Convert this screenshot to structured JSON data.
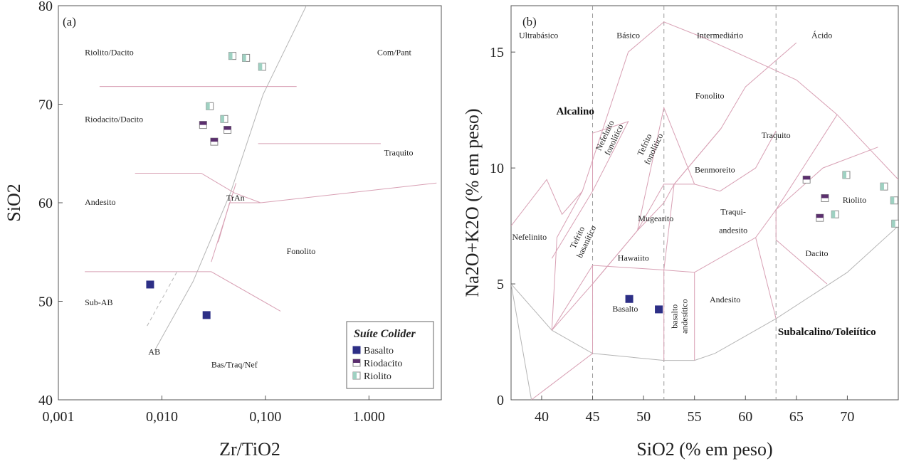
{
  "colors": {
    "basalto": "#2d2f86",
    "riodacito": "#5b2f6e",
    "riolito": "#9fd1c2",
    "pink_line": "#d8a0b4",
    "gray_line": "#b5b5b5"
  },
  "chart_data": [
    {
      "type": "scatter",
      "panel_label": "(a)",
      "xlabel": "Zr/TiO2",
      "ylabel": "SiO2",
      "x_scale": "log",
      "xlim": [
        0.001,
        5
      ],
      "ylim": [
        40,
        80
      ],
      "x_ticks": [
        {
          "value": 0.001,
          "label": "0,001"
        },
        {
          "value": 0.01,
          "label": "0,010"
        },
        {
          "value": 0.1,
          "label": "0,100"
        },
        {
          "value": 1,
          "label": "1.000"
        }
      ],
      "y_ticks": [
        {
          "value": 40,
          "label": "40"
        },
        {
          "value": 50,
          "label": "50"
        },
        {
          "value": 60,
          "label": "60"
        },
        {
          "value": 70,
          "label": "70"
        },
        {
          "value": 80,
          "label": "80"
        }
      ],
      "field_labels": [
        {
          "text": "Riolito/Dacito",
          "x": 0.0018,
          "y": 75.0
        },
        {
          "text": "Com/Pant",
          "x": 1.2,
          "y": 75.0
        },
        {
          "text": "Riodacito/Dacito",
          "x": 0.0018,
          "y": 68.2
        },
        {
          "text": "Traquito",
          "x": 1.4,
          "y": 64.8
        },
        {
          "text": "Andesito",
          "x": 0.0018,
          "y": 59.8
        },
        {
          "text": "TrAn",
          "x": 0.042,
          "y": 60.2
        },
        {
          "text": "Fonolito",
          "x": 0.16,
          "y": 54.8
        },
        {
          "text": "Sub-AB",
          "x": 0.0018,
          "y": 49.6
        },
        {
          "text": "AB",
          "x": 0.0074,
          "y": 44.6
        },
        {
          "text": "Bas/Traq/Nef",
          "x": 0.03,
          "y": 43.3
        }
      ],
      "legend": {
        "title": "Suíte Colider",
        "items": [
          "Basalto",
          "Riodacito",
          "Riolito"
        ]
      },
      "series": [
        {
          "name": "Basalto",
          "points": [
            [
              0.0077,
              51.7
            ],
            [
              0.027,
              48.6
            ]
          ]
        },
        {
          "name": "Riodacito",
          "points": [
            [
              0.025,
              67.9
            ],
            [
              0.043,
              67.4
            ],
            [
              0.032,
              66.2
            ]
          ]
        },
        {
          "name": "Riolito",
          "points": [
            [
              0.048,
              74.9
            ],
            [
              0.065,
              74.7
            ],
            [
              0.093,
              73.8
            ],
            [
              0.029,
              69.8
            ],
            [
              0.04,
              68.5
            ]
          ]
        }
      ],
      "boundaries": [
        [
          [
            0.0085,
            45.0
          ],
          [
            0.02,
            52.0
          ],
          [
            0.046,
            61.0
          ],
          [
            0.095,
            71.0
          ],
          [
            0.65,
            89.0
          ]
        ],
        [
          [
            0.0018,
            53.0
          ],
          [
            0.03,
            53.0
          ],
          [
            0.14,
            49.0
          ]
        ],
        [
          [
            0.0055,
            63.0
          ],
          [
            0.024,
            63.0
          ],
          [
            0.05,
            61.0
          ],
          [
            0.09,
            60.0
          ]
        ],
        [
          [
            0.09,
            60.0
          ],
          [
            4.5,
            62.0
          ]
        ],
        [
          [
            0.0025,
            71.8
          ],
          [
            0.2,
            71.8
          ]
        ],
        [
          [
            0.085,
            66.0
          ],
          [
            1.3,
            66.0
          ]
        ],
        [
          [
            0.035,
            56.0
          ],
          [
            0.045,
            60.0
          ],
          [
            0.09,
            60.0
          ]
        ],
        [
          [
            0.03,
            54.0
          ],
          [
            0.052,
            62.0
          ]
        ]
      ],
      "dashed_boundaries": [
        [
          [
            0.0072,
            47.5
          ],
          [
            0.014,
            53.0
          ]
        ]
      ]
    },
    {
      "type": "scatter",
      "panel_label": "(b)",
      "xlabel": "SiO2 (% em peso)",
      "ylabel": "Na2O+K2O (% em peso)",
      "xlim": [
        37,
        75
      ],
      "ylim": [
        0,
        17
      ],
      "x_ticks": [
        40,
        45,
        50,
        55,
        60,
        65,
        70
      ],
      "y_ticks": [
        0,
        5,
        10,
        15
      ],
      "dashed_x": [
        45,
        52,
        63
      ],
      "category_labels": [
        {
          "text": "Ultrabásico",
          "x": 39.7,
          "y": 15.6
        },
        {
          "text": "Básico",
          "x": 48.5,
          "y": 15.6
        },
        {
          "text": "Intermediário",
          "x": 57.5,
          "y": 15.6
        },
        {
          "text": "Ácido",
          "x": 67.5,
          "y": 15.6
        }
      ],
      "series_labels": [
        {
          "text": "Alcalino",
          "x": 43.3,
          "y": 12.3,
          "size": 15
        },
        {
          "text": "Subalcalino/Toleiítico",
          "x": 68.0,
          "y": 2.8,
          "size": 15
        }
      ],
      "field_labels": [
        {
          "text": "Fonolito",
          "x": 56.5,
          "y": 13.0
        },
        {
          "text": "Traquito",
          "x": 63.0,
          "y": 11.3
        },
        {
          "text": "Benmoreito",
          "x": 57.0,
          "y": 9.8
        },
        {
          "text": "Mugearito",
          "x": 51.2,
          "y": 7.7
        },
        {
          "text": "Traqui-",
          "x": 58.8,
          "y": 8.0
        },
        {
          "text": "andesito",
          "x": 58.8,
          "y": 7.2
        },
        {
          "text": "Hawaiito",
          "x": 49.0,
          "y": 6.0
        },
        {
          "text": "Nefelinito",
          "x": 38.8,
          "y": 6.9
        },
        {
          "text": "Andesito",
          "x": 58.0,
          "y": 4.2
        },
        {
          "text": "Dacito",
          "x": 67.0,
          "y": 6.2
        },
        {
          "text": "Riolito",
          "x": 70.7,
          "y": 8.5
        },
        {
          "text": "Basalto",
          "x": 48.2,
          "y": 3.8
        }
      ],
      "rotated_labels": [
        {
          "lines": [
            "Nefelnito",
            "fonolítico"
          ],
          "x": 46.7,
          "y": 11.3,
          "angle": -65
        },
        {
          "lines": [
            "Tefrito",
            "fonolítico"
          ],
          "x": 50.6,
          "y": 10.9,
          "angle": -65
        },
        {
          "lines": [
            "Tefrito",
            "basanítico"
          ],
          "x": 44.0,
          "y": 6.9,
          "angle": -65
        },
        {
          "lines": [
            "basalto",
            "andesítico"
          ],
          "x": 53.6,
          "y": 3.6,
          "angle": -90
        }
      ],
      "series": [
        {
          "name": "Basalto",
          "points": [
            [
              48.6,
              4.35
            ],
            [
              51.5,
              3.9
            ]
          ]
        },
        {
          "name": "Riodacito",
          "points": [
            [
              66.0,
              9.5
            ],
            [
              67.8,
              8.7
            ],
            [
              67.3,
              7.85
            ]
          ]
        },
        {
          "name": "Riolito",
          "points": [
            [
              69.9,
              9.7
            ],
            [
              73.6,
              9.2
            ],
            [
              74.6,
              8.6
            ],
            [
              68.8,
              8.0
            ],
            [
              74.7,
              7.6
            ]
          ]
        }
      ],
      "outer_boundary": [
        [
          39.0,
          0.0
        ],
        [
          37.0,
          5.0
        ],
        [
          41.0,
          3.0
        ],
        [
          45.0,
          2.0
        ],
        [
          52.0,
          1.7
        ],
        [
          55.0,
          1.7
        ],
        [
          57.0,
          2.0
        ],
        [
          63.0,
          3.5
        ],
        [
          70.0,
          5.5
        ],
        [
          75.0,
          7.5
        ]
      ],
      "boundaries": [
        [
          [
            37.0,
            7.5
          ],
          [
            40.5,
            9.5
          ],
          [
            42.0,
            8.0
          ],
          [
            44.0,
            9.0
          ],
          [
            48.5,
            15.0
          ],
          [
            52.0,
            16.3
          ],
          [
            56.0,
            15.6
          ],
          [
            60.0,
            14.8
          ],
          [
            65.0,
            13.8
          ],
          [
            69.0,
            12.3
          ],
          [
            75.0,
            9.5
          ]
        ],
        [
          [
            39.0,
            0.0
          ],
          [
            45.0,
            2.0
          ]
        ],
        [
          [
            45.0,
            5.8
          ],
          [
            45.0,
            2.0
          ]
        ],
        [
          [
            41.0,
            3.0
          ],
          [
            45.0,
            5.8
          ],
          [
            52.0,
            5.6
          ],
          [
            55.0,
            5.5
          ],
          [
            61.0,
            7.0
          ],
          [
            63.0,
            8.2
          ],
          [
            67.6,
            10.0
          ],
          [
            73.0,
            10.9
          ]
        ],
        [
          [
            41.0,
            3.0
          ],
          [
            41.5,
            7.0
          ],
          [
            44.0,
            9.0
          ]
        ],
        [
          [
            41.0,
            6.1
          ],
          [
            45.0,
            9.0
          ],
          [
            45.0,
            11.5
          ]
        ],
        [
          [
            45.0,
            9.0
          ],
          [
            48.5,
            12.0
          ],
          [
            45.0,
            11.5
          ]
        ],
        [
          [
            41.0,
            3.0
          ],
          [
            45.0,
            5.0
          ],
          [
            49.4,
            7.3
          ]
        ],
        [
          [
            45.0,
            5.0
          ],
          [
            49.4,
            7.3
          ],
          [
            52.0,
            8.5
          ],
          [
            53.0,
            9.3
          ],
          [
            55.0,
            9.3
          ],
          [
            57.5,
            9.0
          ],
          [
            61.0,
            10.0
          ],
          [
            63.0,
            11.6
          ]
        ],
        [
          [
            49.4,
            7.3
          ],
          [
            52.0,
            9.3
          ],
          [
            53.0,
            9.3
          ],
          [
            57.6,
            11.7
          ],
          [
            60.0,
            13.5
          ],
          [
            65.0,
            15.4
          ]
        ],
        [
          [
            52.0,
            5.6
          ],
          [
            53.0,
            9.3
          ]
        ],
        [
          [
            53.0,
            9.3
          ],
          [
            57.6,
            11.7
          ]
        ],
        [
          [
            55.0,
            9.3
          ],
          [
            52.0,
            12.6
          ],
          [
            49.4,
            7.3
          ]
        ],
        [
          [
            55.0,
            5.5
          ],
          [
            55.0,
            1.7
          ]
        ],
        [
          [
            52.0,
            1.7
          ],
          [
            52.0,
            5.6
          ]
        ],
        [
          [
            61.0,
            7.0
          ],
          [
            63.0,
            3.5
          ]
        ],
        [
          [
            63.0,
            8.2
          ],
          [
            63.0,
            6.9
          ]
        ],
        [
          [
            63.0,
            8.2
          ],
          [
            69.0,
            12.3
          ]
        ],
        [
          [
            63.0,
            6.9
          ],
          [
            68.0,
            5.0
          ]
        ]
      ]
    }
  ]
}
